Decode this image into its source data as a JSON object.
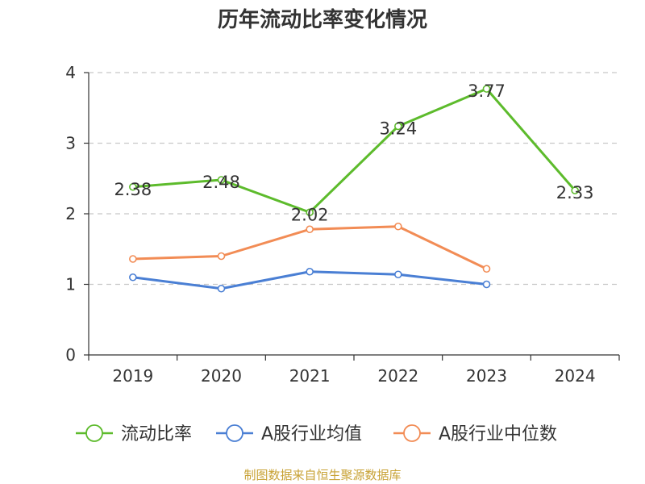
{
  "title": "历年流动比率变化情况",
  "source": "制图数据来自恒生聚源数据库",
  "chart_data": {
    "type": "line",
    "title": "历年流动比率变化情况",
    "categories": [
      "2019",
      "2020",
      "2021",
      "2022",
      "2023",
      "2024"
    ],
    "ylim": [
      0,
      4
    ],
    "yticks": [
      0,
      1,
      2,
      3,
      4
    ],
    "grid": true,
    "legend_position": "bottom",
    "series": [
      {
        "name": "流动比率",
        "color": "#5dbb2c",
        "show_labels": true,
        "values": [
          2.38,
          2.48,
          2.02,
          3.24,
          3.77,
          2.33
        ],
        "labels": [
          "2.38",
          "2.48",
          "2.02",
          "3.24",
          "3.77",
          "2.33"
        ]
      },
      {
        "name": "A股行业均值",
        "color": "#4a7fd4",
        "show_labels": false,
        "values": [
          1.1,
          0.94,
          1.18,
          1.14,
          1.0,
          null
        ]
      },
      {
        "name": "A股行业中位数",
        "color": "#f28c55",
        "show_labels": false,
        "values": [
          1.36,
          1.4,
          1.78,
          1.82,
          1.22,
          null
        ]
      }
    ]
  }
}
